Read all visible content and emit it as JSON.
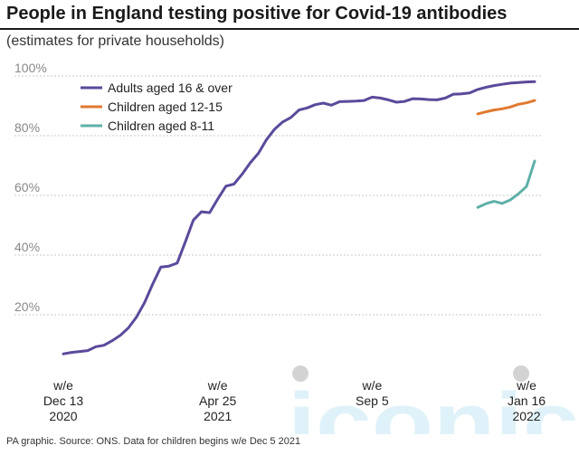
{
  "title": "People in England testing positive for Covid-19 antibodies",
  "subtitle": "(estimates for private households)",
  "source": "PA graphic. Source: ONS. Data for children begins w/e Dec 5 2021",
  "watermark": "iconic",
  "colors": {
    "adults": "#5b4a9b",
    "children_12_15": "#e07a30",
    "children_8_11": "#5fb0a8",
    "grid": "#c8c8c8",
    "tick": "#888888",
    "watermark": "#bfe3f2"
  },
  "chart_data": {
    "type": "line",
    "title": "People in England testing positive for Covid-19 antibodies",
    "subtitle": "(estimates for private households)",
    "ylim": [
      0,
      100
    ],
    "y_ticks": [
      "20%",
      "40%",
      "60%",
      "80%",
      "100%"
    ],
    "y_tick_values": [
      20,
      40,
      60,
      80,
      100
    ],
    "grid": true,
    "legend_position": "top-left",
    "x_tick_labels": [
      {
        "week": 0,
        "lines": [
          "w/e",
          "Dec 13",
          "2020"
        ]
      },
      {
        "week": 19,
        "lines": [
          "w/e",
          "Apr 25",
          "2021"
        ]
      },
      {
        "week": 38,
        "lines": [
          "w/e",
          "Sep 5"
        ]
      },
      {
        "week": 57,
        "lines": [
          "w/e",
          "Jan 16",
          "2022"
        ]
      }
    ],
    "x_range_weeks": [
      0,
      58
    ],
    "series": [
      {
        "name": "Adults aged 16 & over",
        "color_key": "adults",
        "x": [
          0,
          1,
          2,
          3,
          4,
          5,
          6,
          7,
          8,
          9,
          10,
          11,
          12,
          13,
          14,
          15,
          16,
          17,
          18,
          19,
          20,
          21,
          22,
          23,
          24,
          25,
          26,
          27,
          28,
          29,
          30,
          31,
          32,
          33,
          34,
          35,
          36,
          37,
          38,
          39,
          40,
          41,
          42,
          43,
          44,
          45,
          46,
          47,
          48,
          49,
          50,
          51,
          52,
          53,
          54,
          55,
          56,
          57,
          58
        ],
        "values": [
          6.9,
          7.4,
          7.7,
          8.0,
          9.3,
          9.8,
          11.3,
          13.1,
          15.6,
          19.2,
          24.1,
          30.3,
          36.0,
          36.3,
          37.3,
          44.3,
          51.7,
          54.5,
          54.2,
          58.8,
          63.1,
          63.8,
          67.1,
          70.9,
          74.1,
          78.7,
          82.2,
          84.6,
          86.1,
          88.6,
          89.3,
          90.4,
          90.9,
          90.2,
          91.4,
          91.5,
          91.6,
          91.8,
          92.9,
          92.6,
          92.0,
          91.2,
          91.5,
          92.4,
          92.3,
          92.1,
          92.0,
          92.6,
          93.9,
          94.0,
          94.3,
          95.5,
          96.2,
          96.8,
          97.2,
          97.6,
          97.8,
          98.0,
          98.1
        ]
      },
      {
        "name": "Children aged 12-15",
        "color_key": "children_12_15",
        "x": [
          51,
          52,
          53,
          54,
          55,
          56,
          57,
          58
        ],
        "values": [
          87.3,
          88.0,
          88.6,
          89.0,
          89.6,
          90.5,
          91.0,
          91.8
        ]
      },
      {
        "name": "Children aged 8-11",
        "color_key": "children_8_11",
        "x": [
          51,
          52,
          53,
          54,
          55,
          56,
          57,
          58
        ],
        "values": [
          56.0,
          57.2,
          58.0,
          57.3,
          58.5,
          60.5,
          63.0,
          71.5
        ]
      }
    ]
  }
}
